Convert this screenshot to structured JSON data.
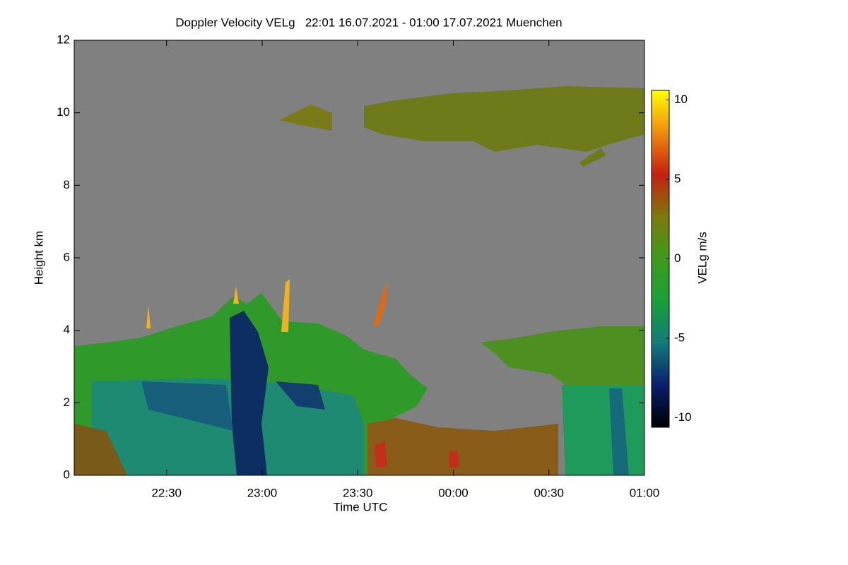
{
  "chart_data": {
    "type": "heatmap",
    "title": "Doppler Velocity VELg   22:01 16.07.2021 - 01:00 17.07.2021 Muenchen",
    "x_label": "Time UTC",
    "y_label": "Height km",
    "colorbar_label": "VELg m/s",
    "xlim": [
      1,
      180
    ],
    "xticks": [
      {
        "value": 30,
        "label": "22:30"
      },
      {
        "value": 60,
        "label": "23:00"
      },
      {
        "value": 90,
        "label": "23:30"
      },
      {
        "value": 120,
        "label": "00:00"
      },
      {
        "value": 150,
        "label": "00:30"
      },
      {
        "value": 180,
        "label": "01:00"
      }
    ],
    "ylim": [
      0,
      12
    ],
    "yticks": [
      0,
      2,
      4,
      6,
      8,
      10,
      12
    ],
    "clim": [
      -10.6,
      10.6
    ],
    "cticks": [
      -10,
      -5,
      0,
      5,
      10
    ],
    "colormap": [
      "#000000",
      "#0a1f6e",
      "#137a7a",
      "#1aa03a",
      "#3e9a1c",
      "#7a7a10",
      "#c42010",
      "#f08a10",
      "#ffff00"
    ]
  }
}
